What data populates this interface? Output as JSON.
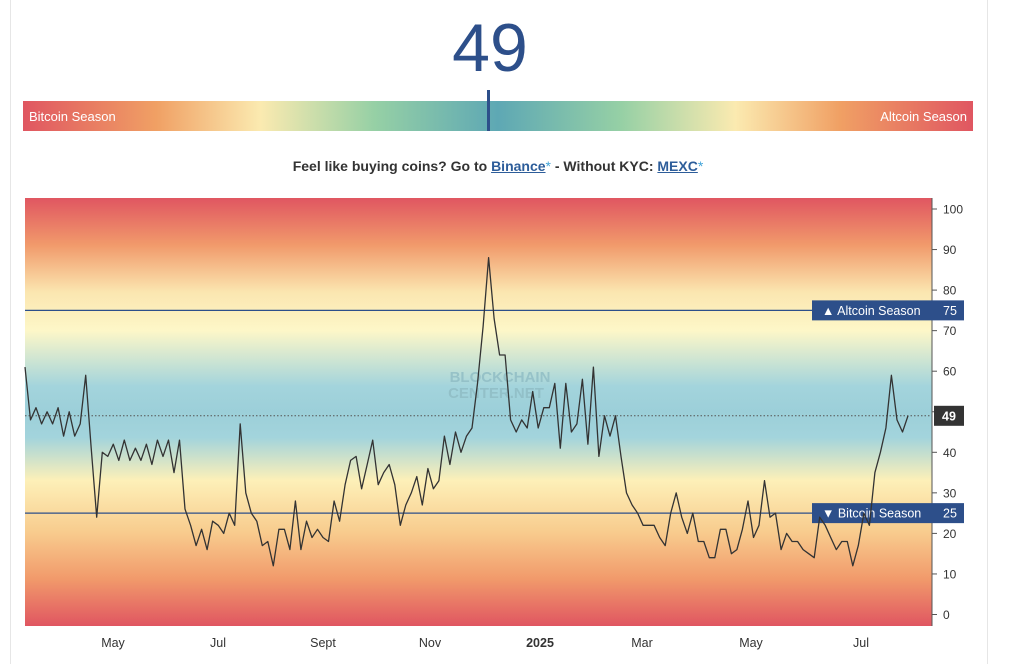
{
  "index": {
    "value": "49"
  },
  "season_bar": {
    "left_label": "Bitcoin Season",
    "right_label": "Altcoin Season",
    "marker_value": 49
  },
  "promo": {
    "prefix": "Feel like buying coins? Go to ",
    "binance": "Binance",
    "star": "*",
    "middle": " - Without KYC: ",
    "mexc": "MEXC"
  },
  "watermark": {
    "line1": "BLOCKCHAIN",
    "line2": "CENTER.NET"
  },
  "chart_data": {
    "type": "line",
    "series": [
      {
        "values": [
          61,
          48,
          51,
          47,
          50,
          47,
          51,
          44,
          50,
          44,
          47,
          59,
          41,
          24,
          40,
          39,
          42,
          38,
          43,
          38,
          41,
          38,
          42,
          37,
          43,
          39,
          43,
          35,
          43,
          26,
          22,
          17,
          21,
          16,
          23,
          22,
          20,
          25,
          22,
          47,
          30,
          25,
          23,
          17,
          18,
          12,
          21,
          21,
          16,
          28,
          16,
          23,
          19,
          21,
          19,
          18,
          28,
          23,
          32,
          38,
          39,
          31,
          37,
          43,
          32,
          35,
          37,
          32,
          22,
          27,
          30,
          34,
          27,
          36,
          31,
          33,
          44,
          37,
          45,
          40,
          44,
          46,
          57,
          71,
          88,
          73,
          64,
          64,
          48,
          45,
          48,
          46,
          55,
          46,
          51,
          51,
          57,
          41,
          57,
          45,
          47,
          58,
          42,
          61,
          39,
          49,
          44,
          49,
          39,
          30,
          27,
          25,
          22,
          22,
          22,
          19,
          17,
          25,
          30,
          24,
          20,
          25,
          18,
          18,
          14,
          14,
          21,
          21,
          15,
          16,
          21,
          28,
          19,
          22,
          33,
          24,
          25,
          16,
          20,
          18,
          18,
          16,
          15,
          14,
          24,
          22,
          19,
          16,
          18,
          18,
          12,
          17,
          25,
          22,
          35,
          40,
          46,
          59,
          48,
          45,
          49
        ],
        "color": "#333333"
      }
    ],
    "x_ticks": [
      "May",
      "Jul",
      "Sept",
      "Nov",
      "2025",
      "Mar",
      "May",
      "Jul"
    ],
    "y_ticks": [
      0,
      10,
      20,
      30,
      40,
      50,
      60,
      70,
      80,
      90,
      100
    ],
    "ylim": [
      0,
      100
    ],
    "reference_lines": [
      {
        "value": 75,
        "label": "▲ Altcoin Season",
        "badge": "75"
      },
      {
        "value": 25,
        "label": "▼ Bitcoin Season",
        "badge": "25"
      }
    ],
    "current_marker": {
      "value": 49,
      "badge": "49"
    },
    "colors": {
      "altcoin": "#e05661",
      "neutral": "#9ccfd9",
      "label_bg": "#2d4f8a",
      "current_bg": "#333333"
    }
  }
}
